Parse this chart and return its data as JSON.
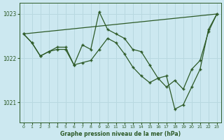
{
  "title": "Graphe pression niveau de la mer (hPa)",
  "bg_color": "#cce8f0",
  "line_color": "#2d5a27",
  "grid_color": "#b8d8e0",
  "xlim": [
    -0.5,
    23.5
  ],
  "ylim": [
    1020.55,
    1023.25
  ],
  "yticks": [
    1021,
    1022,
    1023
  ],
  "xticks": [
    0,
    1,
    2,
    3,
    4,
    5,
    6,
    7,
    8,
    9,
    10,
    11,
    12,
    13,
    14,
    15,
    16,
    17,
    18,
    19,
    20,
    21,
    22,
    23
  ],
  "series1": {
    "x": [
      0,
      23
    ],
    "y": [
      1022.55,
      1023.0
    ]
  },
  "series2": {
    "x": [
      0,
      1,
      2,
      3,
      4,
      5,
      6,
      7,
      8,
      9,
      10,
      11,
      12,
      13,
      14,
      15,
      16,
      17,
      18,
      19,
      20,
      21,
      22,
      23
    ],
    "y": [
      1022.55,
      1022.35,
      1022.05,
      1022.15,
      1022.25,
      1022.25,
      1021.85,
      1022.3,
      1022.2,
      1023.05,
      1022.65,
      1022.55,
      1022.45,
      1022.2,
      1022.15,
      1021.85,
      1021.55,
      1021.35,
      1021.5,
      1021.3,
      1021.75,
      1021.95,
      1022.6,
      1023.0
    ]
  },
  "series3": {
    "x": [
      0,
      1,
      2,
      3,
      4,
      5,
      6,
      7,
      8,
      9,
      10,
      11,
      12,
      13,
      14,
      15,
      16,
      17,
      18,
      19,
      20,
      21,
      22,
      23
    ],
    "y": [
      1022.55,
      1022.35,
      1022.05,
      1022.15,
      1022.2,
      1022.2,
      1021.85,
      1021.9,
      1021.95,
      1022.2,
      1022.45,
      1022.35,
      1022.1,
      1021.8,
      1021.6,
      1021.45,
      1021.55,
      1021.6,
      1020.85,
      1020.95,
      1021.35,
      1021.75,
      1022.65,
      1023.0
    ]
  }
}
